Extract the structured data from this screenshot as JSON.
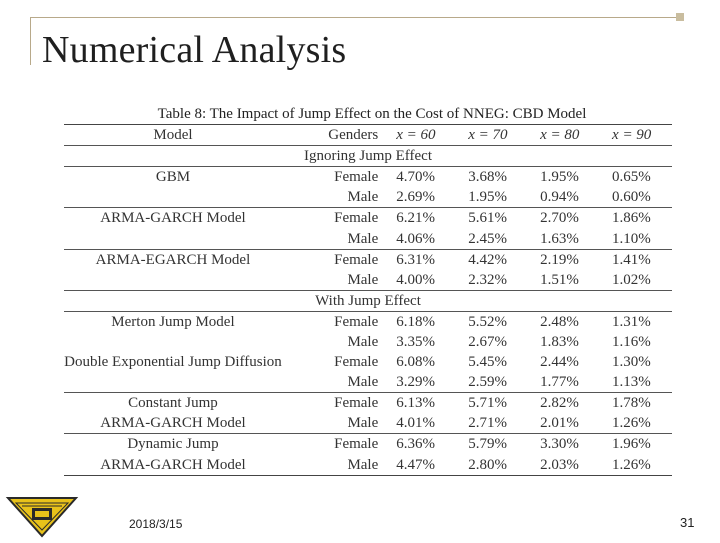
{
  "slide": {
    "title": "Numerical Analysis",
    "date": "2018/3/15",
    "page_number": "31"
  },
  "table": {
    "caption": "Table 8: The Impact of Jump Effect on the Cost of NNEG: CBD Model",
    "headers": [
      "Model",
      "Genders",
      "x = 60",
      "x = 70",
      "x = 80",
      "x = 90"
    ],
    "section_ignoring": "Ignoring Jump Effect",
    "section_with": "With Jump Effect",
    "rows": [
      {
        "model": "GBM",
        "gender": "Female",
        "v": [
          "4.70%",
          "3.68%",
          "1.95%",
          "0.65%"
        ]
      },
      {
        "model": "",
        "gender": "Male",
        "v": [
          "2.69%",
          "1.95%",
          "0.94%",
          "0.60%"
        ]
      },
      {
        "model": "ARMA-GARCH Model",
        "gender": "Female",
        "v": [
          "6.21%",
          "5.61%",
          "2.70%",
          "1.86%"
        ]
      },
      {
        "model": "",
        "gender": "Male",
        "v": [
          "4.06%",
          "2.45%",
          "1.63%",
          "1.10%"
        ]
      },
      {
        "model": "ARMA-EGARCH Model",
        "gender": "Female",
        "v": [
          "6.31%",
          "4.42%",
          "2.19%",
          "1.41%"
        ]
      },
      {
        "model": "",
        "gender": "Male",
        "v": [
          "4.00%",
          "2.32%",
          "1.51%",
          "1.02%"
        ]
      },
      {
        "model": "Merton Jump Model",
        "gender": "Female",
        "v": [
          "6.18%",
          "5.52%",
          "2.48%",
          "1.31%"
        ]
      },
      {
        "model": "",
        "gender": "Male",
        "v": [
          "3.35%",
          "2.67%",
          "1.83%",
          "1.16%"
        ]
      },
      {
        "model": "Double Exponential Jump Diffusion",
        "gender": "Female",
        "v": [
          "6.08%",
          "5.45%",
          "2.44%",
          "1.30%"
        ]
      },
      {
        "model": "",
        "gender": "Male",
        "v": [
          "3.29%",
          "2.59%",
          "1.77%",
          "1.13%"
        ]
      },
      {
        "model": "Constant Jump",
        "gender": "Female",
        "v": [
          "6.13%",
          "5.71%",
          "2.82%",
          "1.78%"
        ]
      },
      {
        "model": "ARMA-GARCH Model",
        "gender": "Male",
        "v": [
          "4.01%",
          "2.71%",
          "2.01%",
          "1.26%"
        ]
      },
      {
        "model": "Dynamic Jump",
        "gender": "Female",
        "v": [
          "6.36%",
          "5.79%",
          "3.30%",
          "1.96%"
        ]
      },
      {
        "model": "ARMA-GARCH Model",
        "gender": "Male",
        "v": [
          "4.47%",
          "2.80%",
          "2.03%",
          "1.26%"
        ]
      }
    ]
  },
  "icons": {
    "logo": "university-emblem-icon"
  },
  "colors": {
    "frame": "#b8a98a",
    "logo_fill": "#e8c21a",
    "logo_dark": "#2a2a2a"
  }
}
